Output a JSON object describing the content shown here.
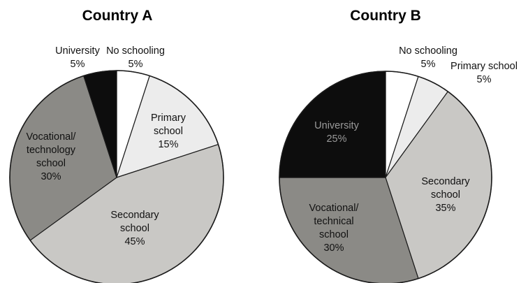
{
  "chart_data": [
    {
      "type": "pie",
      "title": "Country A",
      "slices": [
        {
          "label_lines": [
            "No schooling"
          ],
          "value_label": "5%",
          "value": 5,
          "color": "#ffffff",
          "text_color": "#111111"
        },
        {
          "label_lines": [
            "Primary",
            "school"
          ],
          "value_label": "15%",
          "value": 15,
          "color": "#ececec",
          "text_color": "#111111"
        },
        {
          "label_lines": [
            "Secondary",
            "school"
          ],
          "value_label": "45%",
          "value": 45,
          "color": "#c9c8c5",
          "text_color": "#111111"
        },
        {
          "label_lines": [
            "Vocational/",
            "technology",
            "school"
          ],
          "value_label": "30%",
          "value": 30,
          "color": "#8b8a86",
          "text_color": "#111111"
        },
        {
          "label_lines": [
            "University"
          ],
          "value_label": "5%",
          "value": 5,
          "color": "#0d0d0d",
          "text_color": "#111111"
        }
      ]
    },
    {
      "type": "pie",
      "title": "Country B",
      "slices": [
        {
          "label_lines": [
            "No schooling"
          ],
          "value_label": "5%",
          "value": 5,
          "color": "#ffffff",
          "text_color": "#111111"
        },
        {
          "label_lines": [
            "Primary school"
          ],
          "value_label": "5%",
          "value": 5,
          "color": "#ececec",
          "text_color": "#111111"
        },
        {
          "label_lines": [
            "Secondary",
            "school"
          ],
          "value_label": "35%",
          "value": 35,
          "color": "#c9c8c5",
          "text_color": "#111111"
        },
        {
          "label_lines": [
            "Vocational/",
            "technical",
            "school"
          ],
          "value_label": "30%",
          "value": 30,
          "color": "#8b8a86",
          "text_color": "#111111"
        },
        {
          "label_lines": [
            "University"
          ],
          "value_label": "25%",
          "value": 25,
          "color": "#0d0d0d",
          "text_color": "#9a9a9a"
        }
      ]
    }
  ]
}
